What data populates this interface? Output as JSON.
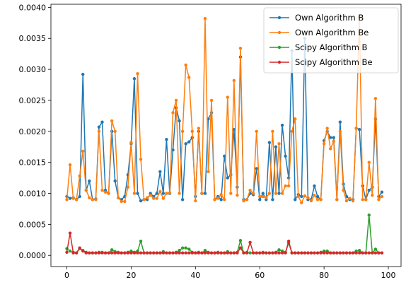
{
  "chart_data": {
    "type": "line",
    "title": "",
    "xlabel": "",
    "ylabel": "",
    "xlim": [
      -4.95,
      103.95
    ],
    "ylim": [
      -0.00018,
      0.00405
    ],
    "x_ticks": [
      0,
      20,
      40,
      60,
      80,
      100
    ],
    "x_tick_labels": [
      "0",
      "20",
      "40",
      "60",
      "80",
      "100"
    ],
    "y_ticks": [
      0,
      0.0005,
      0.001,
      0.0015,
      0.002,
      0.0025,
      0.003,
      0.0035,
      0.004
    ],
    "y_tick_labels": [
      "0.0000",
      "0.0005",
      "0.0010",
      "0.0015",
      "0.0020",
      "0.0025",
      "0.0030",
      "0.0035",
      "0.0040"
    ],
    "grid": false,
    "legend_position": "top-right",
    "x": [
      0,
      1,
      2,
      3,
      4,
      5,
      6,
      7,
      8,
      9,
      10,
      11,
      12,
      13,
      14,
      15,
      16,
      17,
      18,
      19,
      20,
      21,
      22,
      23,
      24,
      25,
      26,
      27,
      28,
      29,
      30,
      31,
      32,
      33,
      34,
      35,
      36,
      37,
      38,
      39,
      40,
      41,
      42,
      43,
      44,
      45,
      46,
      47,
      48,
      49,
      50,
      51,
      52,
      53,
      54,
      55,
      56,
      57,
      58,
      59,
      60,
      61,
      62,
      63,
      64,
      65,
      66,
      67,
      68,
      69,
      70,
      71,
      72,
      73,
      74,
      75,
      76,
      77,
      78,
      79,
      80,
      81,
      82,
      83,
      84,
      85,
      86,
      87,
      88,
      89,
      90,
      91,
      92,
      93,
      94,
      95,
      96,
      97,
      98
    ],
    "series": [
      {
        "name": "Own Algorithm B",
        "color": "#1f77b4",
        "values": [
          0.00095,
          0.00092,
          0.00093,
          0.0009,
          0.00095,
          0.00292,
          0.00105,
          0.0012,
          0.0009,
          0.00091,
          0.00207,
          0.00215,
          0.00105,
          0.001,
          0.002,
          0.0012,
          0.00093,
          0.0009,
          0.00095,
          0.0013,
          0.0018,
          0.00285,
          0.001,
          0.00088,
          0.0009,
          0.0009,
          0.001,
          0.00095,
          0.001,
          0.00135,
          0.001,
          0.00187,
          0.001,
          0.0017,
          0.00238,
          0.00217,
          0.0009,
          0.0018,
          0.00183,
          0.0019,
          0.00095,
          0.002,
          0.001,
          0.001,
          0.0022,
          0.0023,
          0.0009,
          0.00095,
          0.0009,
          0.0016,
          0.00125,
          0.0013,
          0.00203,
          0.0011,
          0.0032,
          0.0009,
          0.0009,
          0.001,
          0.00098,
          0.0014,
          0.0009,
          0.001,
          0.0009,
          0.00182,
          0.0009,
          0.00175,
          0.001,
          0.0021,
          0.0016,
          0.00125,
          0.0033,
          0.0009,
          0.00098,
          0.00095,
          0.0035,
          0.0009,
          0.0009,
          0.00112,
          0.00095,
          0.0009,
          0.00185,
          0.002,
          0.0019,
          0.0019,
          0.0009,
          0.00215,
          0.00115,
          0.00095,
          0.0009,
          0.0009,
          0.00205,
          0.00203,
          0.00112,
          0.0009,
          0.00105,
          0.0011,
          0.0022,
          0.00095,
          0.00102
        ]
      },
      {
        "name": "Own Algorithm Be",
        "color": "#ff7f0e",
        "values": [
          0.0009,
          0.00146,
          0.00092,
          0.0009,
          0.00128,
          0.00168,
          0.00105,
          0.00093,
          0.0009,
          0.0009,
          0.002,
          0.00105,
          0.00102,
          0.001,
          0.00217,
          0.002,
          0.00093,
          0.00087,
          0.00087,
          0.0011,
          0.00182,
          0.001,
          0.00293,
          0.00155,
          0.0009,
          0.00093,
          0.00097,
          0.00092,
          0.00092,
          0.00103,
          0.00092,
          0.001,
          0.00101,
          0.0023,
          0.0025,
          0.001,
          0.002,
          0.00307,
          0.00287,
          0.002,
          0.00088,
          0.00205,
          0.001,
          0.00382,
          0.00135,
          0.0025,
          0.0009,
          0.00092,
          0.00098,
          0.0009,
          0.00255,
          0.001,
          0.00282,
          0.00097,
          0.00334,
          0.00088,
          0.0009,
          0.00105,
          0.001,
          0.002,
          0.00095,
          0.00095,
          0.00093,
          0.001,
          0.002,
          0.001,
          0.0018,
          0.001,
          0.00112,
          0.00112,
          0.002,
          0.0022,
          0.00095,
          0.00085,
          0.00096,
          0.00093,
          0.00088,
          0.00097,
          0.0009,
          0.0009,
          0.0018,
          0.00205,
          0.00172,
          0.00184,
          0.0009,
          0.002,
          0.00105,
          0.00088,
          0.00092,
          0.00088,
          0.00205,
          0.00384,
          0.0009,
          0.0009,
          0.0015,
          0.00097,
          0.00253,
          0.0009,
          0.00095
        ]
      },
      {
        "name": "Scipy Algorithm B",
        "color": "#2ca02c",
        "values": [
          0.00011,
          7e-05,
          5e-05,
          4e-05,
          0.00011,
          8e-05,
          5e-05,
          4e-05,
          4e-05,
          4e-05,
          5e-05,
          5e-05,
          4e-05,
          4e-05,
          9e-05,
          6e-05,
          5e-05,
          4e-05,
          4e-05,
          5e-05,
          7e-05,
          5e-05,
          7e-05,
          0.00023,
          4e-05,
          4e-05,
          4e-05,
          4e-05,
          4e-05,
          4e-05,
          6e-05,
          4e-05,
          4e-05,
          4e-05,
          5e-05,
          8e-05,
          0.00012,
          0.00012,
          0.0001,
          5e-05,
          4e-05,
          5e-05,
          4e-05,
          8e-05,
          5e-05,
          4e-05,
          4e-05,
          5e-05,
          4e-05,
          4e-05,
          6e-05,
          4e-05,
          4e-05,
          5e-05,
          0.00024,
          4e-05,
          5e-05,
          4e-05,
          4e-05,
          4e-05,
          4e-05,
          5e-05,
          4e-05,
          4e-05,
          4e-05,
          5e-05,
          9e-05,
          7e-05,
          5e-05,
          0.0002,
          4e-05,
          4e-05,
          4e-05,
          4e-05,
          4e-05,
          4e-05,
          4e-05,
          4e-05,
          4e-05,
          5e-05,
          7e-05,
          7e-05,
          4e-05,
          4e-05,
          4e-05,
          4e-05,
          4e-05,
          4e-05,
          4e-05,
          4e-05,
          7e-05,
          8e-05,
          4e-05,
          4e-05,
          0.00065,
          4e-05,
          0.0001,
          4e-05,
          4e-05
        ]
      },
      {
        "name": "Scipy Algorithm Be",
        "color": "#d62728",
        "values": [
          5e-05,
          0.00036,
          4e-05,
          4e-05,
          0.00012,
          7e-05,
          4e-05,
          4e-05,
          4e-05,
          4e-05,
          4e-05,
          4e-05,
          4e-05,
          4e-05,
          4e-05,
          4e-05,
          4e-05,
          4e-05,
          4e-05,
          4e-05,
          4e-05,
          4e-05,
          4e-05,
          4e-05,
          4e-05,
          4e-05,
          4e-05,
          4e-05,
          4e-05,
          4e-05,
          4e-05,
          4e-05,
          4e-05,
          4e-05,
          4e-05,
          4e-05,
          4e-05,
          4e-05,
          4e-05,
          4e-05,
          4e-05,
          4e-05,
          4e-05,
          4e-05,
          4e-05,
          4e-05,
          4e-05,
          4e-05,
          4e-05,
          4e-05,
          4e-05,
          4e-05,
          4e-05,
          4e-05,
          0.00012,
          4e-05,
          4e-05,
          0.00021,
          4e-05,
          4e-05,
          4e-05,
          4e-05,
          4e-05,
          4e-05,
          4e-05,
          4e-05,
          4e-05,
          4e-05,
          4e-05,
          0.00023,
          4e-05,
          4e-05,
          4e-05,
          4e-05,
          4e-05,
          4e-05,
          4e-05,
          4e-05,
          4e-05,
          4e-05,
          4e-05,
          4e-05,
          4e-05,
          4e-05,
          4e-05,
          4e-05,
          4e-05,
          4e-05,
          4e-05,
          4e-05,
          4e-05,
          4e-05,
          4e-05,
          4e-05,
          4e-05,
          4e-05,
          4e-05,
          4e-05,
          4e-05
        ]
      }
    ]
  }
}
